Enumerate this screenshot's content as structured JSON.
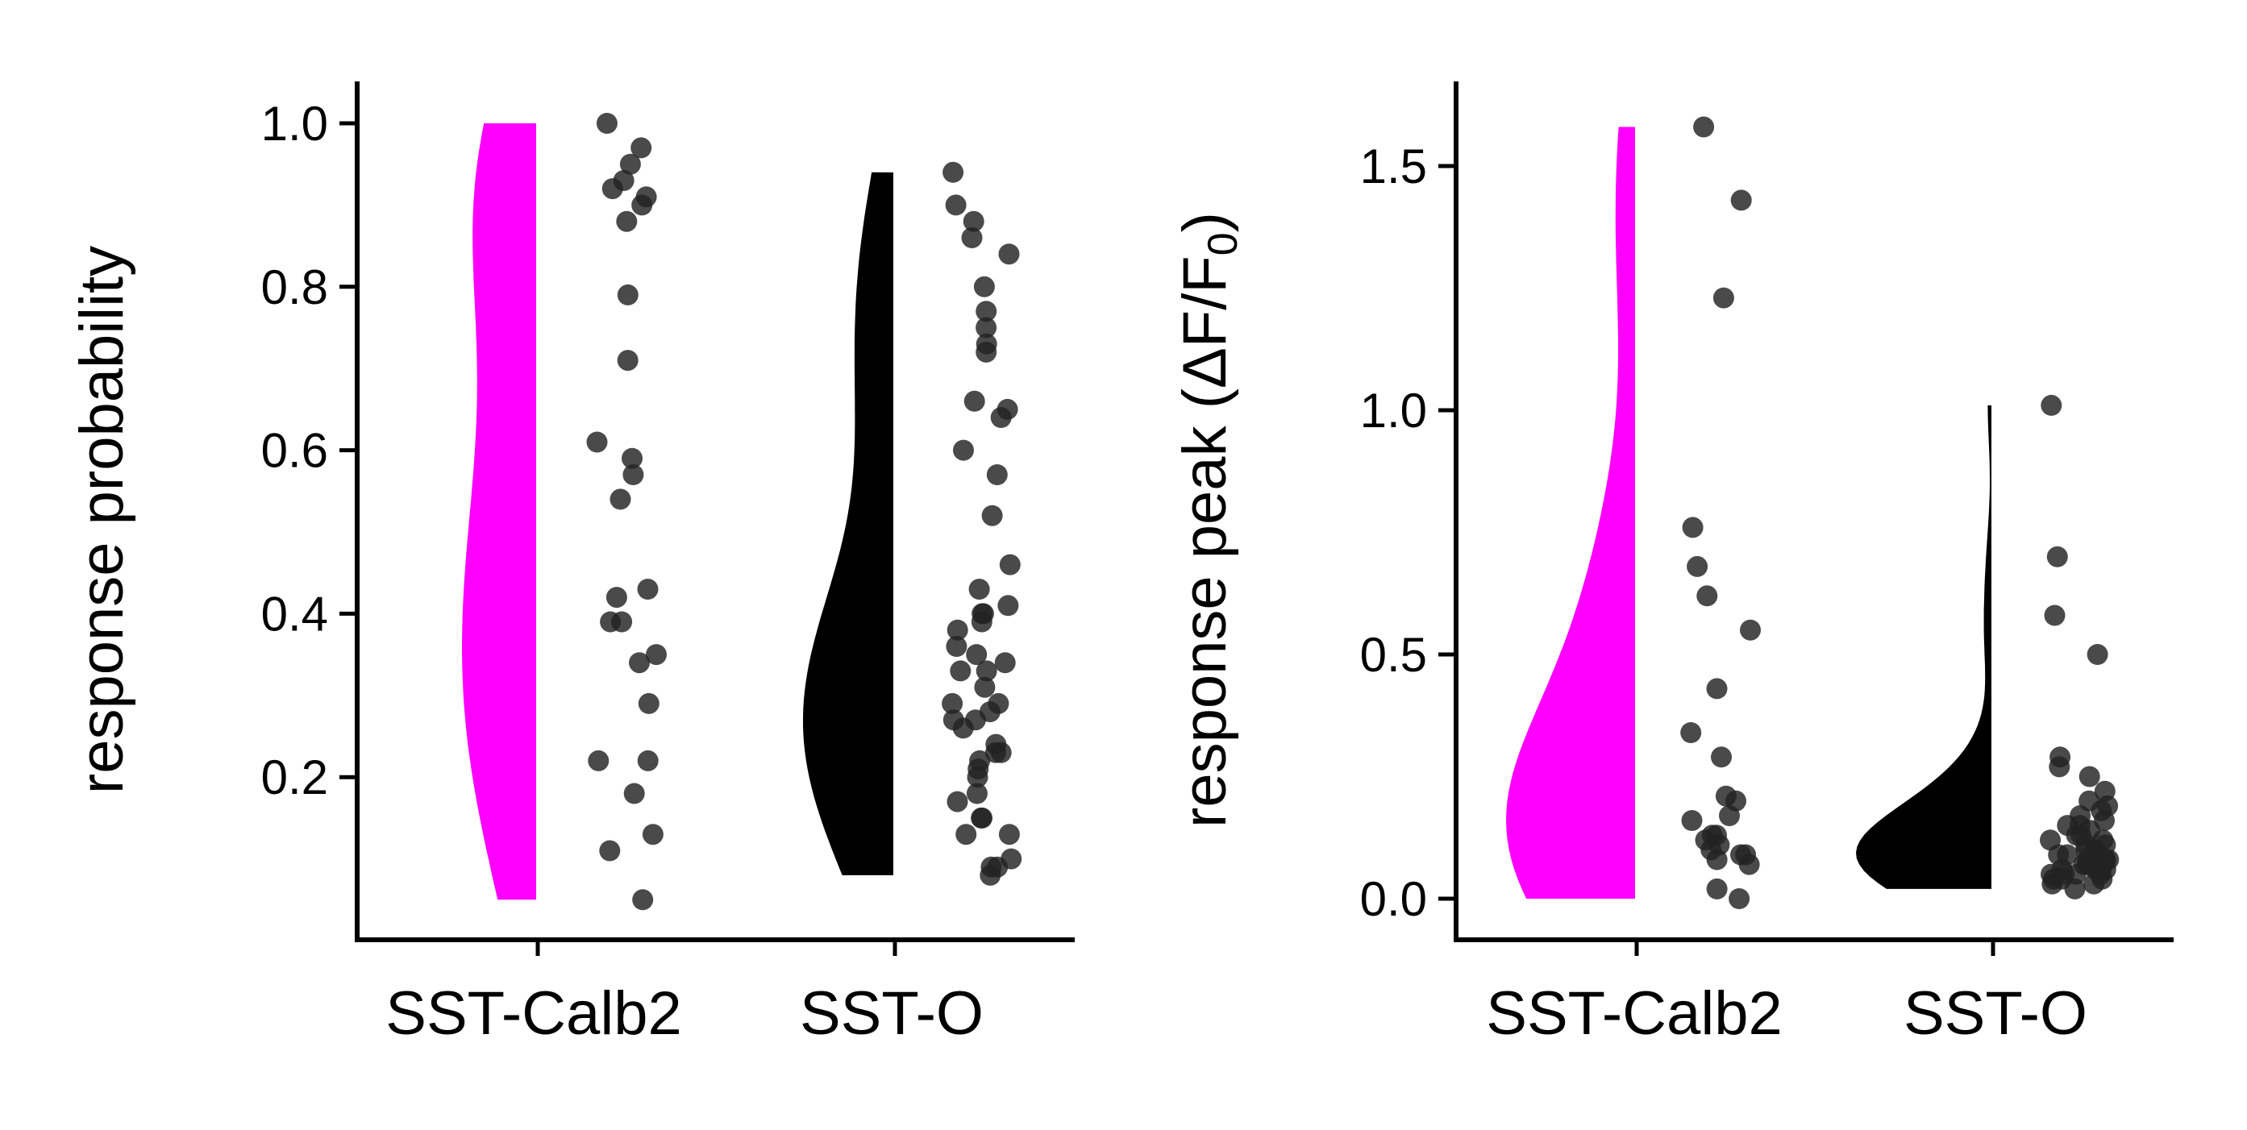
{
  "chart_data": [
    {
      "type": "scatter",
      "subtype": "half-violin with jittered strip",
      "ylabel": "response probability",
      "categories": [
        "SST-Calb2",
        "SST-O"
      ],
      "yticks": [
        "0.2",
        "0.4",
        "0.6",
        "0.8",
        "1.0"
      ],
      "ylim": [
        0.0,
        1.05
      ],
      "grid": false,
      "colors": {
        "SST-Calb2": "#ff00ff",
        "SST-O": "#000000",
        "points": "#222222"
      },
      "series": [
        {
          "category": "SST-Calb2",
          "violin_range": [
            0.05,
            1.0
          ],
          "values": [
            1.0,
            0.97,
            0.95,
            0.93,
            0.92,
            0.91,
            0.9,
            0.88,
            0.79,
            0.71,
            0.61,
            0.59,
            0.57,
            0.54,
            0.43,
            0.42,
            0.39,
            0.39,
            0.35,
            0.34,
            0.29,
            0.22,
            0.22,
            0.18,
            0.13,
            0.11,
            0.05
          ]
        },
        {
          "category": "SST-O",
          "violin_range": [
            0.08,
            0.94
          ],
          "values": [
            0.94,
            0.9,
            0.88,
            0.86,
            0.84,
            0.8,
            0.77,
            0.75,
            0.73,
            0.72,
            0.66,
            0.65,
            0.64,
            0.6,
            0.57,
            0.52,
            0.46,
            0.43,
            0.41,
            0.4,
            0.4,
            0.39,
            0.38,
            0.36,
            0.35,
            0.34,
            0.33,
            0.33,
            0.31,
            0.29,
            0.29,
            0.28,
            0.27,
            0.27,
            0.26,
            0.24,
            0.23,
            0.23,
            0.22,
            0.21,
            0.2,
            0.18,
            0.17,
            0.15,
            0.15,
            0.13,
            0.13,
            0.1,
            0.09,
            0.09,
            0.08
          ]
        }
      ]
    },
    {
      "type": "scatter",
      "subtype": "half-violin with jittered strip",
      "ylabel": "response peak (ΔF/F",
      "ylabel_sub": "0",
      "ylabel_end": ")",
      "categories": [
        "SST-Calb2",
        "SST-O"
      ],
      "yticks": [
        "0.0",
        "0.5",
        "1.0",
        "1.5"
      ],
      "ylim": [
        -0.09,
        1.65
      ],
      "grid": false,
      "colors": {
        "SST-Calb2": "#ff00ff",
        "SST-O": "#000000",
        "points": "#222222"
      },
      "series": [
        {
          "category": "SST-Calb2",
          "violin_range": [
            0.0,
            1.58
          ],
          "values": [
            1.58,
            1.43,
            1.23,
            0.76,
            0.68,
            0.62,
            0.55,
            0.43,
            0.34,
            0.29,
            0.21,
            0.2,
            0.17,
            0.16,
            0.13,
            0.13,
            0.12,
            0.11,
            0.1,
            0.09,
            0.09,
            0.08,
            0.07,
            0.02,
            0.0
          ]
        },
        {
          "category": "SST-O",
          "violin_range": [
            0.02,
            1.01
          ],
          "values": [
            1.01,
            0.7,
            0.58,
            0.5,
            0.29,
            0.27,
            0.25,
            0.22,
            0.2,
            0.19,
            0.18,
            0.17,
            0.16,
            0.15,
            0.15,
            0.14,
            0.13,
            0.13,
            0.12,
            0.12,
            0.11,
            0.11,
            0.1,
            0.1,
            0.1,
            0.09,
            0.09,
            0.09,
            0.08,
            0.08,
            0.08,
            0.08,
            0.07,
            0.07,
            0.07,
            0.06,
            0.06,
            0.06,
            0.06,
            0.05,
            0.05,
            0.05,
            0.05,
            0.04,
            0.04,
            0.04,
            0.03,
            0.03,
            0.02
          ]
        }
      ]
    }
  ]
}
